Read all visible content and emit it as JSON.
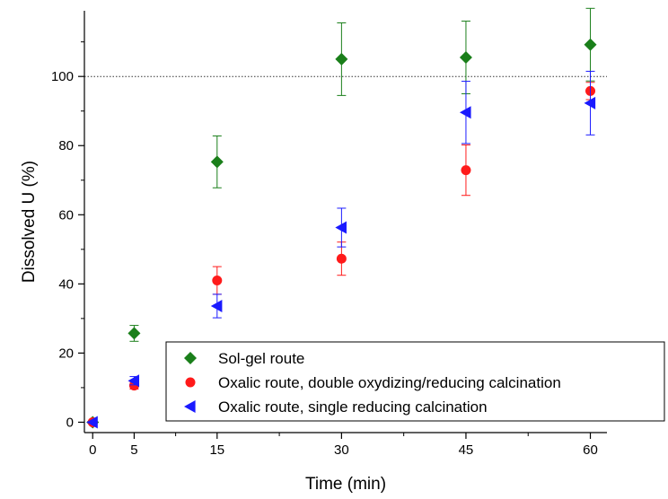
{
  "chart_data": {
    "type": "scatter",
    "title": "",
    "xlabel": "Time (min)",
    "ylabel": "Dissolved U (%)",
    "xlim": [
      -1,
      62
    ],
    "ylim": [
      -3,
      119
    ],
    "x_ticks": [
      0,
      5,
      15,
      30,
      45,
      60
    ],
    "x_tick_labels": [
      "0",
      "5",
      "15",
      "30",
      "45",
      "60"
    ],
    "y_ticks": [
      0,
      20,
      40,
      60,
      80,
      100
    ],
    "y_tick_labels": [
      "0",
      "20",
      "40",
      "60",
      "80",
      "100"
    ],
    "reference_line": {
      "y": 100,
      "style": "dotted"
    },
    "grid": false,
    "legend_position": "bottom-right",
    "series": [
      {
        "name": "Sol-gel route",
        "marker": "diamond",
        "color": "#1a7f1a",
        "points": [
          {
            "x": 0,
            "y": 0,
            "err": 0
          },
          {
            "x": 5,
            "y": 25.7,
            "err": 2.3
          },
          {
            "x": 15,
            "y": 75.3,
            "err": 7.5
          },
          {
            "x": 30,
            "y": 105.0,
            "err": 10.5
          },
          {
            "x": 45,
            "y": 105.5,
            "err": 10.5
          },
          {
            "x": 60,
            "y": 109.2,
            "err": 10.5
          }
        ]
      },
      {
        "name": "Oxalic route, double oxydizing/reducing calcination",
        "marker": "circle",
        "color": "#ff1a1a",
        "points": [
          {
            "x": 0,
            "y": 0,
            "err": 0
          },
          {
            "x": 5,
            "y": 10.6,
            "err": 1.0
          },
          {
            "x": 15,
            "y": 41.0,
            "err": 4.0
          },
          {
            "x": 30,
            "y": 47.3,
            "err": 4.8
          },
          {
            "x": 45,
            "y": 72.9,
            "err": 7.3
          },
          {
            "x": 60,
            "y": 95.8,
            "err": 2.5
          }
        ]
      },
      {
        "name": "Oxalic route, single reducing calcination",
        "marker": "triangle-left",
        "color": "#1a1aff",
        "points": [
          {
            "x": 0,
            "y": 0,
            "err": 0
          },
          {
            "x": 5,
            "y": 12.0,
            "err": 1.2
          },
          {
            "x": 15,
            "y": 33.6,
            "err": 3.4
          },
          {
            "x": 30,
            "y": 56.3,
            "err": 5.6
          },
          {
            "x": 45,
            "y": 89.6,
            "err": 9.0
          },
          {
            "x": 60,
            "y": 92.3,
            "err": 9.2
          }
        ]
      }
    ]
  }
}
